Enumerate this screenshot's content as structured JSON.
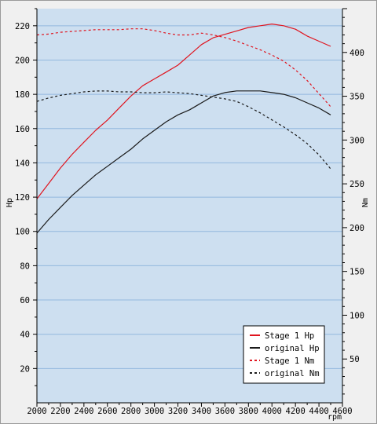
{
  "chart_data": {
    "type": "line",
    "title": "",
    "xlabel": "rpm",
    "ylabel_left": "Hp",
    "ylabel_right": "Nm",
    "xlim": [
      2000,
      4600
    ],
    "ylim_left": [
      0,
      230
    ],
    "ylim_right": [
      0,
      450
    ],
    "x_ticks": [
      2000,
      2200,
      2400,
      2600,
      2800,
      3000,
      3200,
      3400,
      3600,
      3800,
      4000,
      4200,
      4400,
      4600
    ],
    "y_left_ticks": [
      20,
      40,
      60,
      80,
      100,
      120,
      140,
      160,
      180,
      200,
      220
    ],
    "y_right_ticks": [
      50,
      100,
      150,
      200,
      250,
      300,
      350,
      400
    ],
    "grid": true,
    "legend_position": "bottom-right",
    "colors": {
      "plot_background": "#cddff0",
      "grid": "#93b8de",
      "stage1": "#e0141e",
      "original": "#1a1a1a"
    },
    "series": [
      {
        "name": "Stage 1 Hp",
        "axis": "left",
        "style": "solid",
        "color": "#e0141e",
        "x": [
          2000,
          2100,
          2200,
          2300,
          2400,
          2500,
          2600,
          2700,
          2800,
          2900,
          3000,
          3100,
          3200,
          3300,
          3400,
          3500,
          3600,
          3700,
          3800,
          3900,
          4000,
          4100,
          4200,
          4300,
          4400,
          4500
        ],
        "y": [
          119,
          128,
          137,
          145,
          152,
          159,
          165,
          172,
          179,
          185,
          189,
          193,
          197,
          203,
          209,
          213,
          215,
          217,
          219,
          220,
          221,
          220,
          218,
          214,
          211,
          208
        ]
      },
      {
        "name": "original Hp",
        "axis": "left",
        "style": "solid",
        "color": "#1a1a1a",
        "x": [
          2000,
          2100,
          2200,
          2300,
          2400,
          2500,
          2600,
          2700,
          2800,
          2900,
          3000,
          3100,
          3200,
          3300,
          3400,
          3500,
          3600,
          3700,
          3800,
          3850,
          3900,
          4000,
          4100,
          4200,
          4300,
          4400,
          4500
        ],
        "y": [
          99,
          107,
          114,
          121,
          127,
          133,
          138,
          143,
          148,
          154,
          159,
          164,
          168,
          171,
          175,
          179,
          181,
          182,
          182,
          182,
          182,
          181,
          180,
          178,
          175,
          172,
          168
        ]
      },
      {
        "name": "Stage 1 Nm",
        "axis": "right",
        "style": "dashed",
        "color": "#e0141e",
        "x": [
          2000,
          2100,
          2200,
          2300,
          2400,
          2500,
          2600,
          2700,
          2800,
          2900,
          3000,
          3100,
          3200,
          3300,
          3400,
          3500,
          3600,
          3700,
          3800,
          3900,
          4000,
          4100,
          4200,
          4300,
          4400,
          4500
        ],
        "y": [
          420,
          421,
          423,
          424,
          425,
          426,
          426,
          426,
          427,
          427,
          425,
          422,
          420,
          420,
          422,
          420,
          417,
          413,
          408,
          403,
          397,
          390,
          380,
          368,
          353,
          338
        ]
      },
      {
        "name": "original Nm",
        "axis": "right",
        "style": "dashed",
        "color": "#1a1a1a",
        "x": [
          2000,
          2100,
          2200,
          2300,
          2400,
          2500,
          2600,
          2700,
          2800,
          2900,
          3000,
          3100,
          3200,
          3300,
          3400,
          3500,
          3600,
          3700,
          3800,
          3900,
          4000,
          4100,
          4200,
          4300,
          4400,
          4500
        ],
        "y": [
          344,
          348,
          351,
          353,
          355,
          356,
          356,
          355,
          355,
          354,
          354,
          355,
          354,
          353,
          351,
          349,
          347,
          344,
          338,
          331,
          323,
          315,
          306,
          296,
          283,
          267
        ]
      }
    ]
  }
}
